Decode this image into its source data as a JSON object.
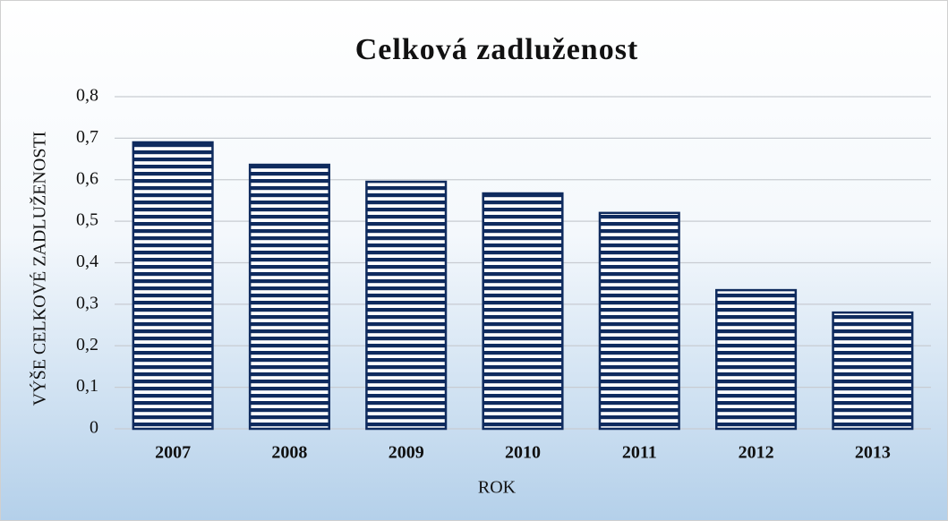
{
  "chart_data": {
    "type": "bar",
    "title": "Celková zadluženost",
    "x_label": "ROK",
    "y_label": "VÝŠE CELKOVÉ ZADLUŽENOSTI",
    "categories": [
      "2007",
      "2008",
      "2009",
      "2010",
      "2011",
      "2012",
      "2013"
    ],
    "values": [
      0.69,
      0.636,
      0.595,
      0.567,
      0.52,
      0.334,
      0.28
    ],
    "color": "#0f2b5e",
    "ylim": [
      0,
      0.8
    ],
    "yticks": [
      0,
      {
        "value": 0.1,
        "label": "0,1"
      },
      {
        "value": 0.2,
        "label": "0,2"
      },
      {
        "value": 0.3,
        "label": "0,3"
      },
      {
        "value": 0.4,
        "label": "0,4"
      },
      {
        "value": 0.5,
        "label": "0,5"
      },
      {
        "value": 0.6,
        "label": "0,6"
      },
      {
        "value": 0.7,
        "label": "0,7"
      },
      {
        "value": 0.8,
        "label": "0,8"
      }
    ],
    "grid": true
  }
}
